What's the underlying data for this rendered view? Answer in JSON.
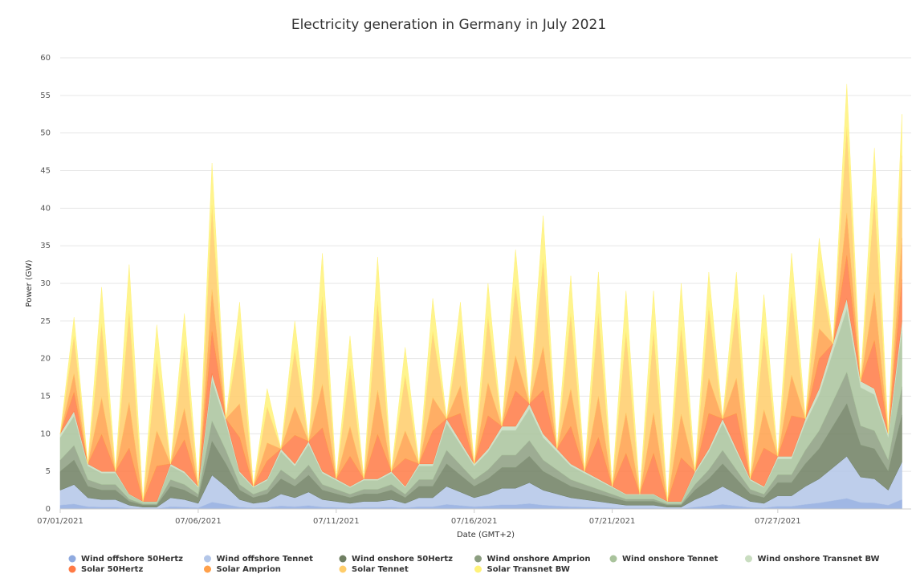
{
  "chart_data": {
    "type": "area",
    "stacked": true,
    "title": "Electricity generation in Germany in July 2021",
    "x_label": "Date (GMT+2)",
    "y_label": "Power (GW)",
    "grid": true,
    "legend": "bottom",
    "x": [
      "07/01/2021 00:00",
      "07/01/2021 12:00",
      "07/02/2021 00:00",
      "07/02/2021 12:00",
      "07/03/2021 00:00",
      "07/03/2021 12:00",
      "07/04/2021 00:00",
      "07/04/2021 12:00",
      "07/05/2021 00:00",
      "07/05/2021 12:00",
      "07/06/2021 00:00",
      "07/06/2021 12:00",
      "07/07/2021 00:00",
      "07/07/2021 12:00",
      "07/08/2021 00:00",
      "07/08/2021 12:00",
      "07/09/2021 00:00",
      "07/09/2021 12:00",
      "07/10/2021 00:00",
      "07/10/2021 12:00",
      "07/11/2021 00:00",
      "07/11/2021 12:00",
      "07/12/2021 00:00",
      "07/12/2021 12:00",
      "07/13/2021 00:00",
      "07/13/2021 12:00",
      "07/14/2021 00:00",
      "07/14/2021 12:00",
      "07/15/2021 00:00",
      "07/15/2021 12:00",
      "07/16/2021 00:00",
      "07/16/2021 12:00",
      "07/17/2021 00:00",
      "07/17/2021 12:00",
      "07/18/2021 00:00",
      "07/18/2021 12:00",
      "07/19/2021 00:00",
      "07/19/2021 12:00",
      "07/20/2021 00:00",
      "07/20/2021 12:00",
      "07/21/2021 00:00",
      "07/21/2021 12:00",
      "07/22/2021 00:00",
      "07/22/2021 12:00",
      "07/23/2021 00:00",
      "07/23/2021 12:00",
      "07/24/2021 00:00",
      "07/24/2021 12:00",
      "07/25/2021 00:00",
      "07/25/2021 12:00",
      "07/26/2021 00:00",
      "07/26/2021 12:00",
      "07/27/2021 00:00",
      "07/27/2021 12:00",
      "07/28/2021 00:00",
      "07/28/2021 12:00",
      "07/29/2021 00:00",
      "07/29/2021 12:00",
      "07/30/2021 00:00",
      "07/30/2021 12:00",
      "07/31/2021 00:00",
      "07/31/2021 12:00"
    ],
    "xlim": [
      "07/01/2021 00:00",
      "07/31/2021 20:00"
    ],
    "xticks": [
      {
        "value": "07/01/2021 00:00",
        "label": "07/01/2021"
      },
      {
        "value": "07/06/2021 00:00",
        "label": "07/06/2021"
      },
      {
        "value": "07/11/2021 00:00",
        "label": "07/11/2021"
      },
      {
        "value": "07/16/2021 00:00",
        "label": "07/16/2021"
      },
      {
        "value": "07/21/2021 00:00",
        "label": "07/21/2021"
      },
      {
        "value": "07/27/2021 00:00",
        "label": "07/27/2021"
      }
    ],
    "ylim": [
      0,
      60
    ],
    "yticks": [
      0,
      5,
      10,
      15,
      20,
      25,
      30,
      35,
      40,
      45,
      50,
      55,
      60
    ],
    "series": [
      {
        "name": "Wind offshore 50Hertz",
        "color": "#8faadf",
        "values": [
          0.5,
          0.65,
          0.3,
          0.25,
          0.25,
          0.1,
          0.05,
          0.05,
          0.3,
          0.25,
          0.15,
          0.9,
          0.6,
          0.25,
          0.15,
          0.2,
          0.4,
          0.3,
          0.45,
          0.25,
          0.2,
          0.15,
          0.2,
          0.2,
          0.25,
          0.15,
          0.3,
          0.3,
          0.6,
          0.45,
          0.3,
          0.4,
          0.55,
          0.55,
          0.7,
          0.5,
          0.4,
          0.3,
          0.25,
          0.2,
          0.15,
          0.1,
          0.1,
          0.1,
          0.05,
          0.05,
          0.25,
          0.4,
          0.6,
          0.4,
          0.2,
          0.15,
          0.35,
          0.35,
          0.6,
          0.8,
          1.1,
          1.4,
          0.85,
          0.8,
          0.5,
          1.25
        ]
      },
      {
        "name": "Wind offshore Tennet",
        "color": "#b3c6e8",
        "values": [
          2,
          2.6,
          1.2,
          1,
          1,
          0.4,
          0.2,
          0.2,
          1.2,
          1,
          0.6,
          3.6,
          2.4,
          1,
          0.6,
          0.8,
          1.6,
          1.2,
          1.8,
          1,
          0.8,
          0.6,
          0.8,
          0.8,
          1,
          0.6,
          1.2,
          1.2,
          2.4,
          1.8,
          1.2,
          1.6,
          2.2,
          2.2,
          2.8,
          2,
          1.6,
          1.2,
          1,
          0.8,
          0.6,
          0.4,
          0.4,
          0.4,
          0.2,
          0.2,
          1,
          1.6,
          2.4,
          1.6,
          0.8,
          0.6,
          1.4,
          1.4,
          2.4,
          3.2,
          4.4,
          5.6,
          3.4,
          3.2,
          2,
          5
        ]
      },
      {
        "name": "Wind onshore 50Hertz",
        "color": "#6f7f62",
        "values": [
          2.5,
          3.25,
          1.5,
          1.25,
          1.25,
          0.5,
          0.25,
          0.25,
          1.5,
          1.25,
          0.75,
          4.5,
          3,
          1.25,
          0.75,
          1,
          2,
          1.5,
          2.25,
          1.25,
          1,
          0.75,
          1,
          1,
          1.25,
          0.75,
          1.5,
          1.5,
          3,
          2.25,
          1.5,
          2,
          2.75,
          2.75,
          3.5,
          2.5,
          2,
          1.5,
          1.25,
          1,
          0.75,
          0.5,
          0.5,
          0.5,
          0.25,
          0.25,
          1.25,
          2,
          3,
          2,
          1,
          0.75,
          1.75,
          1.75,
          3,
          4,
          5.5,
          7,
          4.25,
          4,
          2.5,
          6.25
        ]
      },
      {
        "name": "Wind onshore Amprion",
        "color": "#8c9e80",
        "values": [
          1.5,
          1.95,
          0.9,
          0.75,
          0.75,
          0.3,
          0.15,
          0.15,
          0.9,
          0.75,
          0.45,
          2.7,
          1.8,
          0.75,
          0.45,
          0.6,
          1.2,
          0.9,
          1.35,
          0.75,
          0.6,
          0.45,
          0.6,
          0.6,
          0.75,
          0.45,
          0.9,
          0.9,
          1.8,
          1.35,
          0.9,
          1.2,
          1.65,
          1.65,
          2.1,
          1.5,
          1.2,
          0.9,
          0.75,
          0.6,
          0.45,
          0.3,
          0.3,
          0.3,
          0.15,
          0.15,
          0.75,
          1.2,
          1.8,
          1.2,
          0.6,
          0.45,
          1.05,
          1.05,
          1.8,
          2.4,
          3.3,
          4.2,
          2.55,
          2.4,
          1.5,
          3.75
        ]
      },
      {
        "name": "Wind onshore Tennet",
        "color": "#a9c39c",
        "values": [
          3,
          3.9,
          1.8,
          1.5,
          1.5,
          0.6,
          0.3,
          0.3,
          1.8,
          1.5,
          0.9,
          5.4,
          3.6,
          1.5,
          0.9,
          1.2,
          2.4,
          1.8,
          2.7,
          1.5,
          1.2,
          0.9,
          1.2,
          1.2,
          1.5,
          0.9,
          1.8,
          1.8,
          3.6,
          2.7,
          1.8,
          2.4,
          3.3,
          3.3,
          4.2,
          3,
          2.4,
          1.8,
          1.5,
          1.2,
          0.9,
          0.6,
          0.6,
          0.6,
          0.3,
          0.3,
          1.5,
          2.4,
          3.6,
          2.4,
          1.2,
          0.9,
          2.1,
          2.1,
          3.6,
          4.8,
          6.6,
          8.4,
          5.1,
          4.8,
          3,
          7.5
        ]
      },
      {
        "name": "Wind onshore Transnet BW",
        "color": "#c9ddc0",
        "values": [
          0.5,
          0.65,
          0.3,
          0.25,
          0.25,
          0.1,
          0.05,
          0.05,
          0.3,
          0.25,
          0.15,
          0.9,
          0.6,
          0.25,
          0.15,
          0.2,
          0.4,
          0.3,
          0.45,
          0.25,
          0.2,
          0.15,
          0.2,
          0.2,
          0.25,
          0.15,
          0.3,
          0.3,
          0.6,
          0.45,
          0.3,
          0.4,
          0.55,
          0.55,
          0.7,
          0.5,
          0.4,
          0.3,
          0.25,
          0.2,
          0.15,
          0.1,
          0.1,
          0.1,
          0.05,
          0.05,
          0.25,
          0.4,
          0.6,
          0.4,
          0.2,
          0.15,
          0.35,
          0.35,
          0.6,
          0.8,
          1.1,
          1.4,
          0.85,
          0.8,
          0.5,
          1.25
        ]
      },
      {
        "name": "Solar 50Hertz",
        "color": "#ff7a45",
        "values": [
          0,
          2.5,
          0,
          4.9,
          0,
          6.1,
          0,
          4.7,
          0,
          4.2,
          0,
          5.6,
          0,
          4.5,
          0,
          2.4,
          0,
          3.8,
          0,
          5.8,
          0,
          4,
          0,
          5.9,
          0,
          3.7,
          0,
          4.4,
          0,
          3.7,
          0,
          4.4,
          0,
          4.7,
          0,
          5.8,
          0,
          5,
          0,
          5.5,
          0,
          5.4,
          0,
          5.4,
          0,
          5.8,
          0,
          4.7,
          0,
          4.7,
          0,
          5.1,
          0,
          5.4,
          0,
          4,
          0,
          5.7,
          0,
          6.4,
          0,
          5.5
        ]
      },
      {
        "name": "Solar Amprion",
        "color": "#ffa04a",
        "values": [
          0,
          2.5,
          0,
          4.9,
          0,
          6.1,
          0,
          4.7,
          0,
          4.2,
          0,
          5.6,
          0,
          4.5,
          0,
          2.4,
          0,
          3.8,
          0,
          5.8,
          0,
          4,
          0,
          5.9,
          0,
          3.7,
          0,
          4.4,
          0,
          3.7,
          0,
          4.4,
          0,
          4.7,
          0,
          5.8,
          0,
          5,
          0,
          5.5,
          0,
          5.4,
          0,
          5.4,
          0,
          5.8,
          0,
          4.7,
          0,
          4.7,
          0,
          5.1,
          0,
          5.4,
          0,
          4,
          0,
          5.7,
          0,
          6.4,
          0,
          5.5
        ]
      },
      {
        "name": "Solar Tennet",
        "color": "#ffcd6a",
        "values": [
          0,
          5,
          0,
          9.8,
          0,
          12.2,
          0,
          9.4,
          0,
          8.4,
          0,
          11.2,
          0,
          9,
          0,
          4.8,
          0,
          7.6,
          0,
          11.6,
          0,
          8,
          0,
          11.8,
          0,
          7.4,
          0,
          8.8,
          0,
          7.4,
          0,
          8.8,
          0,
          9.4,
          0,
          11.6,
          0,
          10,
          0,
          11,
          0,
          10.8,
          0,
          10.8,
          0,
          11.6,
          0,
          9.4,
          0,
          9.4,
          0,
          10.2,
          0,
          10.8,
          0,
          8,
          0,
          11.4,
          0,
          12.8,
          0,
          11
        ]
      },
      {
        "name": "Solar Transnet BW",
        "color": "#fff27a",
        "values": [
          0,
          2.5,
          0,
          4.9,
          0,
          6.1,
          0,
          4.7,
          0,
          4.2,
          0,
          5.6,
          0,
          4.5,
          0,
          2.4,
          0,
          3.8,
          0,
          5.8,
          0,
          4,
          0,
          5.9,
          0,
          3.7,
          0,
          4.4,
          0,
          3.7,
          0,
          4.4,
          0,
          4.7,
          0,
          5.8,
          0,
          5,
          0,
          5.5,
          0,
          5.4,
          0,
          5.4,
          0,
          5.8,
          0,
          4.7,
          0,
          4.7,
          0,
          5.1,
          0,
          5.4,
          0,
          4,
          0,
          5.7,
          0,
          6.4,
          0,
          5.5
        ]
      }
    ]
  }
}
